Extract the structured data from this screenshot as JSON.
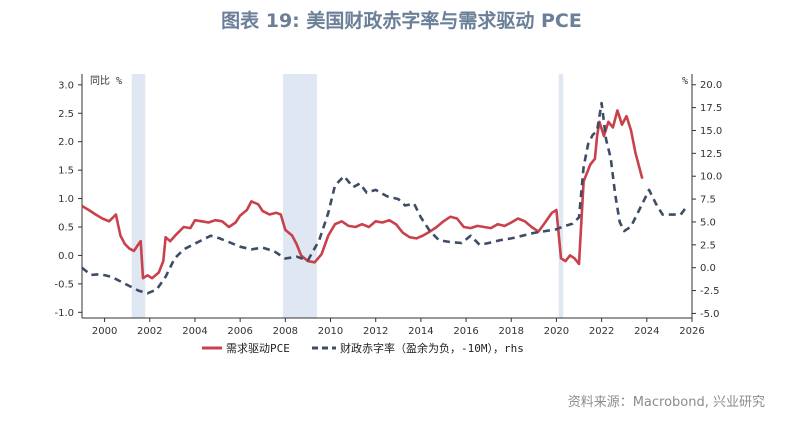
{
  "title": "图表 19: 美国财政赤字率与需求驱动 PCE",
  "source": "资料来源：Macrobond, 兴业研究",
  "chart_data": {
    "type": "line",
    "left_unit": "同比 %",
    "right_unit": "%",
    "x_ticks": [
      "2000",
      "2002",
      "2004",
      "2006",
      "2008",
      "2010",
      "2012",
      "2014",
      "2016",
      "2018",
      "2020",
      "2022",
      "2024",
      "2026"
    ],
    "left_ticks": [
      "3.0",
      "2.5",
      "2.0",
      "1.5",
      "1.0",
      "0.5",
      "0.0",
      "-0.5",
      "-1.0"
    ],
    "right_ticks": [
      "20.0",
      "17.5",
      "15.0",
      "12.5",
      "10.0",
      "7.5",
      "5.0",
      "2.5",
      "0.0",
      "-2.5",
      "-5.0"
    ],
    "xlim": [
      1999,
      2026
    ],
    "left_ylim": [
      -1.0,
      3.0
    ],
    "right_ylim": [
      -5.0,
      20.0
    ],
    "recessions": [
      [
        2001.2,
        2001.8
      ],
      [
        2007.9,
        2009.4
      ],
      [
        2020.1,
        2020.3
      ]
    ],
    "series": [
      {
        "name": "需求驱动PCE",
        "color": "#c8414b",
        "axis": "left",
        "style": "solid",
        "points": [
          [
            1999.0,
            0.87
          ],
          [
            1999.3,
            0.8
          ],
          [
            1999.6,
            0.72
          ],
          [
            1999.9,
            0.65
          ],
          [
            2000.2,
            0.6
          ],
          [
            2000.5,
            0.72
          ],
          [
            2000.7,
            0.35
          ],
          [
            2000.9,
            0.2
          ],
          [
            2001.1,
            0.12
          ],
          [
            2001.3,
            0.08
          ],
          [
            2001.5,
            0.2
          ],
          [
            2001.6,
            0.25
          ],
          [
            2001.7,
            -0.4
          ],
          [
            2001.9,
            -0.35
          ],
          [
            2002.1,
            -0.4
          ],
          [
            2002.4,
            -0.3
          ],
          [
            2002.6,
            -0.1
          ],
          [
            2002.7,
            0.32
          ],
          [
            2002.9,
            0.25
          ],
          [
            2003.2,
            0.38
          ],
          [
            2003.5,
            0.5
          ],
          [
            2003.8,
            0.48
          ],
          [
            2004.0,
            0.62
          ],
          [
            2004.3,
            0.6
          ],
          [
            2004.6,
            0.58
          ],
          [
            2004.9,
            0.62
          ],
          [
            2005.2,
            0.6
          ],
          [
            2005.5,
            0.5
          ],
          [
            2005.8,
            0.58
          ],
          [
            2006.0,
            0.7
          ],
          [
            2006.3,
            0.8
          ],
          [
            2006.5,
            0.95
          ],
          [
            2006.8,
            0.9
          ],
          [
            2007.0,
            0.78
          ],
          [
            2007.3,
            0.72
          ],
          [
            2007.6,
            0.75
          ],
          [
            2007.8,
            0.72
          ],
          [
            2008.0,
            0.45
          ],
          [
            2008.3,
            0.35
          ],
          [
            2008.5,
            0.2
          ],
          [
            2008.7,
            0.0
          ],
          [
            2009.0,
            -0.1
          ],
          [
            2009.3,
            -0.12
          ],
          [
            2009.6,
            0.02
          ],
          [
            2009.9,
            0.35
          ],
          [
            2010.2,
            0.55
          ],
          [
            2010.5,
            0.6
          ],
          [
            2010.8,
            0.52
          ],
          [
            2011.1,
            0.5
          ],
          [
            2011.4,
            0.55
          ],
          [
            2011.7,
            0.5
          ],
          [
            2012.0,
            0.6
          ],
          [
            2012.3,
            0.58
          ],
          [
            2012.6,
            0.62
          ],
          [
            2012.9,
            0.55
          ],
          [
            2013.2,
            0.4
          ],
          [
            2013.5,
            0.32
          ],
          [
            2013.8,
            0.3
          ],
          [
            2014.1,
            0.35
          ],
          [
            2014.4,
            0.42
          ],
          [
            2014.7,
            0.5
          ],
          [
            2015.0,
            0.6
          ],
          [
            2015.3,
            0.68
          ],
          [
            2015.6,
            0.65
          ],
          [
            2015.9,
            0.5
          ],
          [
            2016.2,
            0.48
          ],
          [
            2016.5,
            0.52
          ],
          [
            2016.8,
            0.5
          ],
          [
            2017.1,
            0.48
          ],
          [
            2017.4,
            0.55
          ],
          [
            2017.7,
            0.52
          ],
          [
            2018.0,
            0.58
          ],
          [
            2018.3,
            0.65
          ],
          [
            2018.6,
            0.6
          ],
          [
            2018.9,
            0.5
          ],
          [
            2019.2,
            0.42
          ],
          [
            2019.5,
            0.58
          ],
          [
            2019.8,
            0.75
          ],
          [
            2020.0,
            0.8
          ],
          [
            2020.2,
            -0.05
          ],
          [
            2020.4,
            -0.1
          ],
          [
            2020.6,
            0.0
          ],
          [
            2020.8,
            -0.05
          ],
          [
            2021.0,
            -0.15
          ],
          [
            2021.2,
            1.3
          ],
          [
            2021.5,
            1.6
          ],
          [
            2021.7,
            1.7
          ],
          [
            2021.8,
            2.1
          ],
          [
            2021.9,
            2.35
          ],
          [
            2022.1,
            2.1
          ],
          [
            2022.3,
            2.35
          ],
          [
            2022.5,
            2.25
          ],
          [
            2022.7,
            2.55
          ],
          [
            2022.9,
            2.3
          ],
          [
            2023.1,
            2.45
          ],
          [
            2023.3,
            2.2
          ],
          [
            2023.5,
            1.8
          ],
          [
            2023.8,
            1.35
          ]
        ]
      },
      {
        "name": "财政赤字率（盈余为负，-10M），rhs",
        "color": "#3f4c66",
        "axis": "right",
        "style": "dashed",
        "points": [
          [
            1999.0,
            0.0
          ],
          [
            1999.4,
            -0.8
          ],
          [
            1999.8,
            -0.7
          ],
          [
            2000.3,
            -1.0
          ],
          [
            2000.7,
            -1.5
          ],
          [
            2001.1,
            -2.0
          ],
          [
            2001.5,
            -2.5
          ],
          [
            2001.9,
            -2.8
          ],
          [
            2002.3,
            -2.4
          ],
          [
            2002.7,
            -1.0
          ],
          [
            2003.1,
            1.0
          ],
          [
            2003.5,
            2.0
          ],
          [
            2003.9,
            2.5
          ],
          [
            2004.3,
            3.0
          ],
          [
            2004.7,
            3.5
          ],
          [
            2005.1,
            3.2
          ],
          [
            2005.5,
            2.8
          ],
          [
            2006.0,
            2.3
          ],
          [
            2006.5,
            2.0
          ],
          [
            2007.0,
            2.2
          ],
          [
            2007.5,
            1.8
          ],
          [
            2008.0,
            1.0
          ],
          [
            2008.5,
            1.2
          ],
          [
            2009.0,
            0.8
          ],
          [
            2009.5,
            3.0
          ],
          [
            2009.9,
            6.0
          ],
          [
            2010.2,
            9.0
          ],
          [
            2010.6,
            10.0
          ],
          [
            2011.0,
            8.8
          ],
          [
            2011.3,
            9.2
          ],
          [
            2011.6,
            8.2
          ],
          [
            2012.0,
            8.5
          ],
          [
            2012.5,
            7.8
          ],
          [
            2013.0,
            7.5
          ],
          [
            2013.3,
            6.8
          ],
          [
            2013.7,
            7.0
          ],
          [
            2014.0,
            5.5
          ],
          [
            2014.4,
            4.0
          ],
          [
            2014.8,
            3.0
          ],
          [
            2015.3,
            2.8
          ],
          [
            2015.8,
            2.7
          ],
          [
            2016.2,
            3.5
          ],
          [
            2016.6,
            2.5
          ],
          [
            2017.0,
            2.7
          ],
          [
            2017.5,
            3.0
          ],
          [
            2018.0,
            3.2
          ],
          [
            2018.5,
            3.5
          ],
          [
            2019.0,
            3.8
          ],
          [
            2019.5,
            4.0
          ],
          [
            2020.0,
            4.2
          ],
          [
            2020.3,
            4.5
          ],
          [
            2020.7,
            4.8
          ],
          [
            2021.0,
            5.5
          ],
          [
            2021.2,
            11.0
          ],
          [
            2021.4,
            13.5
          ],
          [
            2021.6,
            14.5
          ],
          [
            2021.8,
            15.0
          ],
          [
            2022.0,
            18.0
          ],
          [
            2022.2,
            14.0
          ],
          [
            2022.4,
            12.0
          ],
          [
            2022.6,
            8.0
          ],
          [
            2022.8,
            5.0
          ],
          [
            2023.0,
            4.0
          ],
          [
            2023.3,
            4.5
          ],
          [
            2023.6,
            6.0
          ],
          [
            2023.9,
            7.5
          ],
          [
            2024.1,
            8.5
          ],
          [
            2024.4,
            7.0
          ],
          [
            2024.7,
            5.8
          ],
          [
            2025.0,
            5.8
          ],
          [
            2025.5,
            5.8
          ],
          [
            2025.8,
            6.8
          ]
        ]
      }
    ],
    "legend": "bottom"
  }
}
